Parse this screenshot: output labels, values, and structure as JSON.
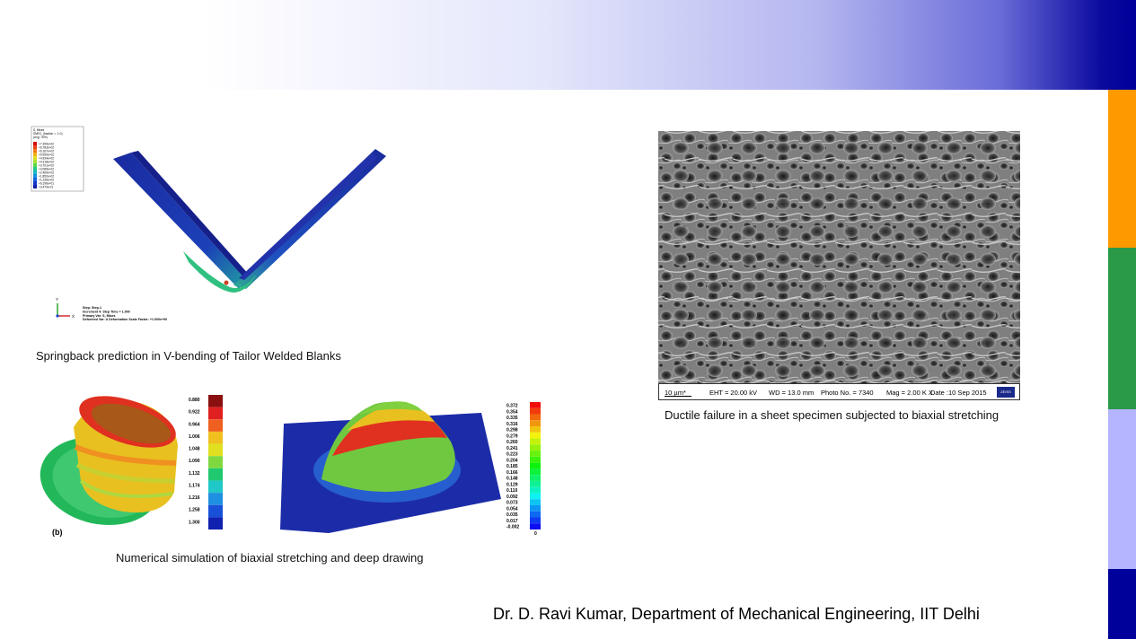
{
  "captions": {
    "springback": "Springback prediction in V-bending of Tailor Welded Blanks",
    "numerical": "Numerical simulation of biaxial stretching and deep drawing",
    "ductile": "Ductile failure in a sheet specimen subjected to biaxial stretching"
  },
  "footer": "Dr. D. Ravi Kumar, Department of Mechanical Engineering, IIT Delhi",
  "vbend": {
    "legend_title": "S, Mises\nSNEG, (fraction = -1.0)\n(Avg: 75%)",
    "legend_values": [
      "+7.399e+02",
      "+6.783e+02",
      "+6.167e+02",
      "+5.550e+02",
      "+4.934e+02",
      "+4.318e+02",
      "+3.701e+02",
      "+3.085e+02",
      "+2.469e+02",
      "+1.852e+02",
      "+1.236e+02",
      "+6.196e+01",
      "+3.470e-01"
    ],
    "step_info": "Step: Step-1\nIncrement  4: Step Time = 1.000\nPrimary Var: S, Mises\nDeformed Var: U   Deformation Scale Factor: +1.000e+00",
    "axis_y": "Y",
    "axis_x": "X"
  },
  "cup": {
    "scale": [
      "0.880",
      "0.922",
      "0.964",
      "1.006",
      "1.048",
      "1.090",
      "1.132",
      "1.174",
      "1.216",
      "1.258",
      "1.300"
    ],
    "label": "(b)"
  },
  "dome": {
    "scale": [
      "0.372",
      "0.354",
      "0.335",
      "0.316",
      "0.298",
      "0.279",
      "0.260",
      "0.241",
      "0.223",
      "0.204",
      "0.185",
      "0.166",
      "0.148",
      "0.129",
      "0.110",
      "0.092",
      "0.073",
      "0.054",
      "0.035",
      "0.017",
      "-0.002"
    ],
    "scale_bottom": "0"
  },
  "sem": {
    "scale": "10 µm*",
    "eht": "EHT = 20.00 kV",
    "wd": "WD = 13.0 mm",
    "photo": "Photo No. = 7340",
    "mag": "Mag =  2.00 K X",
    "date": "Date :10 Sep 2015",
    "logo": "ZEISS"
  },
  "colors": {
    "orange": "#ff9900",
    "green": "#2a9a48",
    "lavender": "#b4b4ff",
    "navy": "#00009a"
  }
}
